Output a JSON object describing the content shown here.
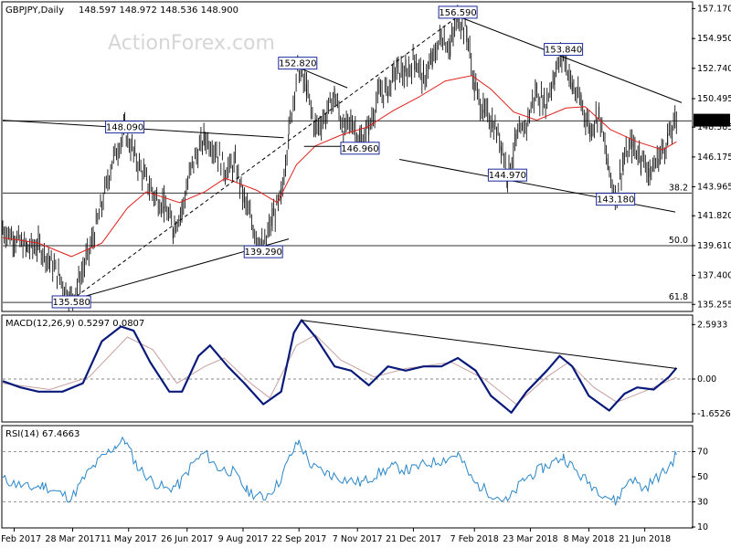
{
  "chart_data": [
    {
      "type": "line",
      "panel": "price",
      "title": "GBPJPY,Daily",
      "ohlc_readout": "148.597 148.972 148.536 148.900",
      "watermark": "ActionForex.com",
      "ylim": [
        134.8,
        157.6
      ],
      "y_ticks": [
        157.17,
        154.95,
        152.74,
        150.495,
        148.385,
        146.175,
        143.965,
        141.82,
        139.61,
        137.4,
        135.255
      ],
      "y_tick_labels": [
        "157.170",
        "154.950",
        "152.740",
        "150.495",
        "148.385",
        "146.175",
        "143.965",
        "141.820",
        "139.610",
        "137.400",
        "135.255"
      ],
      "last_price_label": "148.900",
      "last_price": 148.9,
      "x_dates": [
        "10 Feb 2017",
        "28 Mar 2017",
        "11 May 2017",
        "26 Jun 2017",
        "9 Aug 2017",
        "22 Sep 2017",
        "7 Nov 2017",
        "21 Dec 2017",
        "7 Feb 2018",
        "23 Mar 2018",
        "8 May 2018",
        "21 Jun 2018"
      ],
      "x_date_labels": [
        "10 Feb 2017",
        "28 Mar 2017",
        "11 May 2017",
        "26 Jun 2017",
        "9 Aug 2017",
        "22 Sep 2017",
        "7 Nov 2017",
        "21 Dec 2017",
        "7 Feb 2018",
        "23 Mar 2018",
        "8 May 2018",
        "21 Jun 2018"
      ],
      "price_series": [
        [
          "2017-02-01",
          140.8
        ],
        [
          "2017-02-10",
          140.2
        ],
        [
          "2017-02-20",
          139.4
        ],
        [
          "2017-03-01",
          139.6
        ],
        [
          "2017-03-10",
          138.5
        ],
        [
          "2017-03-18",
          137.2
        ],
        [
          "2017-03-27",
          135.6
        ],
        [
          "2017-04-04",
          137.5
        ],
        [
          "2017-04-12",
          139.8
        ],
        [
          "2017-04-20",
          142.6
        ],
        [
          "2017-04-28",
          145.8
        ],
        [
          "2017-05-08",
          148.1
        ],
        [
          "2017-05-16",
          146.2
        ],
        [
          "2017-05-24",
          144.6
        ],
        [
          "2017-06-01",
          143.2
        ],
        [
          "2017-06-08",
          142.6
        ],
        [
          "2017-06-15",
          140.9
        ],
        [
          "2017-06-22",
          142.3
        ],
        [
          "2017-06-30",
          145.6
        ],
        [
          "2017-07-10",
          147.6
        ],
        [
          "2017-07-18",
          146.8
        ],
        [
          "2017-07-26",
          145.2
        ],
        [
          "2017-08-03",
          145.6
        ],
        [
          "2017-08-10",
          143.0
        ],
        [
          "2017-08-17",
          141.0
        ],
        [
          "2017-08-25",
          139.3
        ],
        [
          "2017-09-01",
          141.6
        ],
        [
          "2017-09-08",
          143.1
        ],
        [
          "2017-09-14",
          148.0
        ],
        [
          "2017-09-21",
          152.8
        ],
        [
          "2017-09-28",
          151.2
        ],
        [
          "2017-10-05",
          148.3
        ],
        [
          "2017-10-13",
          149.2
        ],
        [
          "2017-10-20",
          150.8
        ],
        [
          "2017-10-27",
          148.2
        ],
        [
          "2017-11-03",
          148.8
        ],
        [
          "2017-11-09",
          147.4
        ],
        [
          "2017-11-16",
          148.3
        ],
        [
          "2017-11-24",
          150.9
        ],
        [
          "2017-12-01",
          151.1
        ],
        [
          "2017-12-08",
          152.7
        ],
        [
          "2017-12-15",
          152.3
        ],
        [
          "2017-12-22",
          153.4
        ],
        [
          "2017-12-29",
          152.0
        ],
        [
          "2018-01-05",
          153.3
        ],
        [
          "2018-01-12",
          155.2
        ],
        [
          "2018-01-19",
          154.3
        ],
        [
          "2018-01-25",
          156.6
        ],
        [
          "2018-02-01",
          155.4
        ],
        [
          "2018-02-07",
          151.4
        ],
        [
          "2018-02-14",
          149.6
        ],
        [
          "2018-02-21",
          148.8
        ],
        [
          "2018-02-28",
          147.2
        ],
        [
          "2018-03-05",
          144.97
        ],
        [
          "2018-03-12",
          147.4
        ],
        [
          "2018-03-20",
          148.6
        ],
        [
          "2018-03-27",
          151.0
        ],
        [
          "2018-04-04",
          150.1
        ],
        [
          "2018-04-11",
          152.3
        ],
        [
          "2018-04-18",
          153.84
        ],
        [
          "2018-04-25",
          151.4
        ],
        [
          "2018-05-02",
          150.2
        ],
        [
          "2018-05-09",
          148.2
        ],
        [
          "2018-05-16",
          149.5
        ],
        [
          "2018-05-23",
          145.5
        ],
        [
          "2018-05-29",
          143.2
        ],
        [
          "2018-06-04",
          145.8
        ],
        [
          "2018-06-11",
          147.1
        ],
        [
          "2018-06-18",
          146.2
        ],
        [
          "2018-06-25",
          145.0
        ],
        [
          "2018-07-02",
          146.1
        ],
        [
          "2018-07-09",
          147.5
        ],
        [
          "2018-07-16",
          148.9
        ]
      ],
      "sma_series": [
        [
          "2017-02-01",
          140.2
        ],
        [
          "2017-03-01",
          139.8
        ],
        [
          "2017-03-27",
          138.8
        ],
        [
          "2017-04-20",
          139.8
        ],
        [
          "2017-05-10",
          142.4
        ],
        [
          "2017-05-25",
          143.6
        ],
        [
          "2017-06-20",
          142.8
        ],
        [
          "2017-07-10",
          143.6
        ],
        [
          "2017-07-26",
          144.6
        ],
        [
          "2017-08-20",
          143.7
        ],
        [
          "2017-09-05",
          142.8
        ],
        [
          "2017-09-20",
          145.6
        ],
        [
          "2017-10-05",
          147.0
        ],
        [
          "2017-10-25",
          147.8
        ],
        [
          "2017-11-15",
          148.4
        ],
        [
          "2017-12-05",
          149.6
        ],
        [
          "2017-12-25",
          150.6
        ],
        [
          "2018-01-15",
          151.8
        ],
        [
          "2018-02-05",
          152.2
        ],
        [
          "2018-02-20",
          151.2
        ],
        [
          "2018-03-10",
          149.5
        ],
        [
          "2018-03-28",
          148.9
        ],
        [
          "2018-04-20",
          149.8
        ],
        [
          "2018-05-05",
          149.9
        ],
        [
          "2018-05-25",
          148.2
        ],
        [
          "2018-06-15",
          147.3
        ],
        [
          "2018-07-05",
          146.7
        ],
        [
          "2018-07-16",
          147.3
        ]
      ],
      "horizontal_levels": [
        {
          "value": 143.5,
          "label": "38.2"
        },
        {
          "value": 139.6,
          "label": "50.0"
        },
        {
          "value": 135.4,
          "label": "61.8"
        },
        {
          "value": 148.85,
          "label": ""
        }
      ],
      "annotations": [
        {
          "date": "2017-03-27",
          "value": 135.58,
          "label": "135.580"
        },
        {
          "date": "2017-05-08",
          "value": 148.09,
          "label": "148.090"
        },
        {
          "date": "2017-08-25",
          "value": 139.29,
          "label": "139.290"
        },
        {
          "date": "2017-09-21",
          "value": 152.82,
          "label": "152.820"
        },
        {
          "date": "2017-11-09",
          "value": 146.96,
          "label": "146.960"
        },
        {
          "date": "2018-01-25",
          "value": 156.59,
          "label": "156.590"
        },
        {
          "date": "2018-03-05",
          "value": 144.97,
          "label": "144.970"
        },
        {
          "date": "2018-04-18",
          "value": 153.84,
          "label": "153.840"
        },
        {
          "date": "2018-05-29",
          "value": 143.18,
          "label": "143.180"
        }
      ],
      "trendlines": [
        {
          "from": [
            "2017-03-27",
            135.58
          ],
          "to": [
            "2017-09-14",
            140.1
          ],
          "style": "solid"
        },
        {
          "from": [
            "2017-03-27",
            135.58
          ],
          "to": [
            "2018-01-25",
            156.59
          ],
          "style": "dashed"
        },
        {
          "from": [
            "2017-02-01",
            148.9
          ],
          "to": [
            "2017-09-10",
            147.6
          ],
          "style": "solid"
        },
        {
          "from": [
            "2017-09-21",
            152.82
          ],
          "to": [
            "2017-10-30",
            151.3
          ],
          "style": "solid"
        },
        {
          "from": [
            "2017-09-26",
            146.96
          ],
          "to": [
            "2017-11-20",
            146.96
          ],
          "style": "solid"
        },
        {
          "from": [
            "2018-01-25",
            156.59
          ],
          "to": [
            "2018-07-20",
            150.2
          ],
          "style": "solid"
        },
        {
          "from": [
            "2017-12-10",
            146.0
          ],
          "to": [
            "2018-07-15",
            142.1
          ],
          "style": "solid"
        }
      ]
    },
    {
      "type": "line",
      "panel": "macd",
      "title": "MACD(12,26,9) 0.5297 0.0807",
      "ylim": [
        -2.0,
        3.0
      ],
      "y_ticks": [
        2.5933,
        0.0,
        -1.6526
      ],
      "y_tick_labels": [
        "2.5933",
        "0.00",
        "-1.6526"
      ],
      "macd_series": [
        [
          "2017-02-01",
          -0.1
        ],
        [
          "2017-02-15",
          -0.4
        ],
        [
          "2017-03-01",
          -0.6
        ],
        [
          "2017-03-20",
          -0.6
        ],
        [
          "2017-04-05",
          -0.2
        ],
        [
          "2017-04-20",
          1.8
        ],
        [
          "2017-05-05",
          2.5
        ],
        [
          "2017-05-15",
          2.3
        ],
        [
          "2017-05-28",
          0.8
        ],
        [
          "2017-06-12",
          -0.6
        ],
        [
          "2017-06-22",
          -0.6
        ],
        [
          "2017-07-05",
          1.1
        ],
        [
          "2017-07-14",
          1.6
        ],
        [
          "2017-07-28",
          0.6
        ],
        [
          "2017-08-10",
          -0.2
        ],
        [
          "2017-08-25",
          -1.2
        ],
        [
          "2017-09-08",
          -0.6
        ],
        [
          "2017-09-18",
          2.2
        ],
        [
          "2017-09-24",
          2.8
        ],
        [
          "2017-10-05",
          2.0
        ],
        [
          "2017-10-20",
          0.6
        ],
        [
          "2017-11-02",
          0.4
        ],
        [
          "2017-11-16",
          -0.3
        ],
        [
          "2017-12-01",
          0.6
        ],
        [
          "2017-12-15",
          0.4
        ],
        [
          "2017-12-29",
          0.6
        ],
        [
          "2018-01-12",
          0.6
        ],
        [
          "2018-01-25",
          1.0
        ],
        [
          "2018-02-08",
          0.4
        ],
        [
          "2018-02-20",
          -0.8
        ],
        [
          "2018-03-08",
          -1.6
        ],
        [
          "2018-03-20",
          -0.6
        ],
        [
          "2018-04-05",
          0.4
        ],
        [
          "2018-04-15",
          1.1
        ],
        [
          "2018-04-25",
          0.6
        ],
        [
          "2018-05-08",
          -0.8
        ],
        [
          "2018-05-24",
          -1.5
        ],
        [
          "2018-06-05",
          -0.7
        ],
        [
          "2018-06-15",
          -0.4
        ],
        [
          "2018-06-28",
          -0.5
        ],
        [
          "2018-07-10",
          0.1
        ],
        [
          "2018-07-16",
          0.53
        ]
      ],
      "signal_series": [
        [
          "2017-02-01",
          -0.2
        ],
        [
          "2017-03-10",
          -0.5
        ],
        [
          "2017-04-10",
          0.1
        ],
        [
          "2017-05-10",
          2.0
        ],
        [
          "2017-05-30",
          1.4
        ],
        [
          "2017-06-18",
          -0.2
        ],
        [
          "2017-07-10",
          0.6
        ],
        [
          "2017-07-25",
          1.0
        ],
        [
          "2017-08-15",
          -0.2
        ],
        [
          "2017-08-30",
          -0.9
        ],
        [
          "2017-09-20",
          1.6
        ],
        [
          "2017-10-05",
          2.1
        ],
        [
          "2017-10-25",
          0.9
        ],
        [
          "2017-11-20",
          0.1
        ],
        [
          "2017-12-15",
          0.5
        ],
        [
          "2018-01-20",
          0.8
        ],
        [
          "2018-02-15",
          0.0
        ],
        [
          "2018-03-12",
          -1.2
        ],
        [
          "2018-04-05",
          0.1
        ],
        [
          "2018-04-22",
          0.8
        ],
        [
          "2018-05-12",
          -0.4
        ],
        [
          "2018-05-30",
          -1.1
        ],
        [
          "2018-06-20",
          -0.6
        ],
        [
          "2018-07-16",
          0.08
        ]
      ],
      "trendlines": [
        {
          "from": [
            "2017-09-24",
            2.8
          ],
          "to": [
            "2018-07-16",
            0.5
          ],
          "style": "solid"
        }
      ]
    },
    {
      "type": "line",
      "panel": "rsi",
      "title": "RSI(14) 67.4663",
      "ylim": [
        10,
        90
      ],
      "y_ticks": [
        70,
        50,
        30,
        10
      ],
      "y_tick_labels": [
        "70",
        "50",
        "30",
        "10"
      ],
      "levels": [
        70,
        30
      ],
      "rsi_series": [
        [
          "2017-02-01",
          48
        ],
        [
          "2017-02-12",
          44
        ],
        [
          "2017-02-22",
          41
        ],
        [
          "2017-03-05",
          43
        ],
        [
          "2017-03-15",
          38
        ],
        [
          "2017-03-27",
          33
        ],
        [
          "2017-04-08",
          52
        ],
        [
          "2017-04-20",
          65
        ],
        [
          "2017-05-01",
          75
        ],
        [
          "2017-05-08",
          79
        ],
        [
          "2017-05-18",
          58
        ],
        [
          "2017-05-30",
          46
        ],
        [
          "2017-06-10",
          40
        ],
        [
          "2017-06-20",
          44
        ],
        [
          "2017-06-30",
          60
        ],
        [
          "2017-07-10",
          69
        ],
        [
          "2017-07-20",
          57
        ],
        [
          "2017-08-01",
          54
        ],
        [
          "2017-08-12",
          39
        ],
        [
          "2017-08-25",
          33
        ],
        [
          "2017-09-06",
          45
        ],
        [
          "2017-09-16",
          68
        ],
        [
          "2017-09-22",
          78
        ],
        [
          "2017-10-02",
          58
        ],
        [
          "2017-10-16",
          52
        ],
        [
          "2017-10-28",
          48
        ],
        [
          "2017-11-10",
          45
        ],
        [
          "2017-11-22",
          52
        ],
        [
          "2017-12-05",
          58
        ],
        [
          "2017-12-18",
          55
        ],
        [
          "2017-12-30",
          60
        ],
        [
          "2018-01-12",
          63
        ],
        [
          "2018-01-25",
          68
        ],
        [
          "2018-02-06",
          46
        ],
        [
          "2018-02-18",
          38
        ],
        [
          "2018-03-05",
          30
        ],
        [
          "2018-03-18",
          48
        ],
        [
          "2018-04-02",
          57
        ],
        [
          "2018-04-18",
          66
        ],
        [
          "2018-04-30",
          52
        ],
        [
          "2018-05-12",
          42
        ],
        [
          "2018-05-29",
          30
        ],
        [
          "2018-06-10",
          50
        ],
        [
          "2018-06-20",
          40
        ],
        [
          "2018-06-30",
          49
        ],
        [
          "2018-07-08",
          55
        ],
        [
          "2018-07-16",
          67.5
        ]
      ]
    }
  ]
}
